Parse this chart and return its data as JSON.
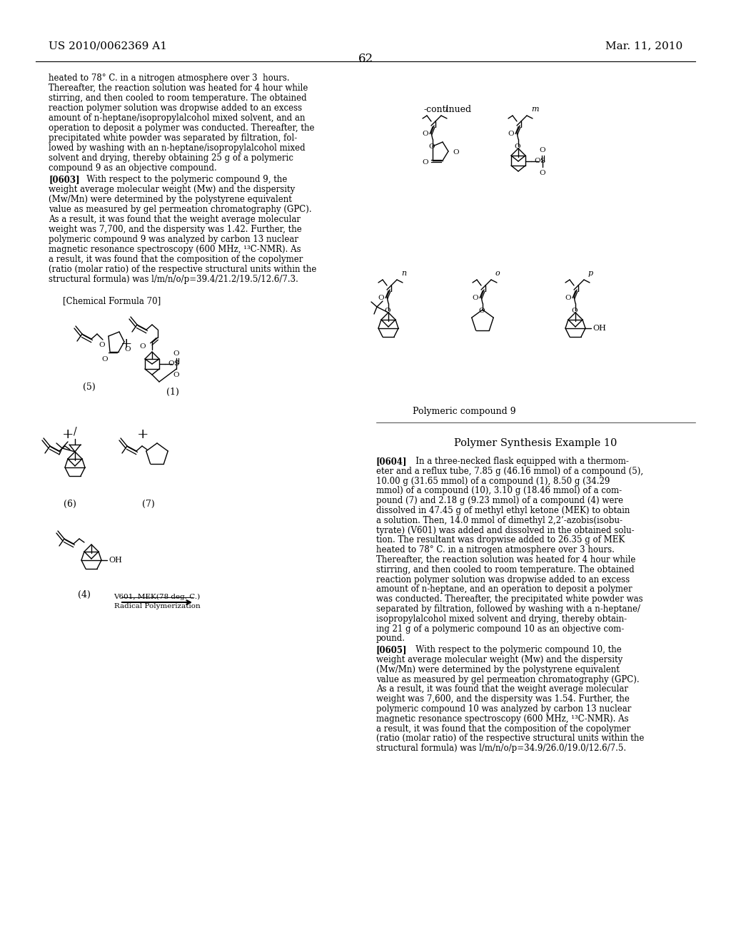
{
  "background_color": "#ffffff",
  "page_number": "62",
  "header_left": "US 2010/0062369 A1",
  "header_right": "Mar. 11, 2010",
  "left_col_lines": [
    "heated to 78° C. in a nitrogen atmosphere over 3  hours.",
    "Thereafter, the reaction solution was heated for 4 hour while",
    "stirring, and then cooled to room temperature. The obtained",
    "reaction polymer solution was dropwise added to an excess",
    "amount of n-heptane/isopropylalcohol mixed solvent, and an",
    "operation to deposit a polymer was conducted. Thereafter, the",
    "precipitated white powder was separated by filtration, fol-",
    "lowed by washing with an n-heptane/isopropylalcohol mixed",
    "solvent and drying, thereby obtaining 25 g of a polymeric",
    "compound 9 as an objective compound."
  ],
  "left_col_para2": [
    "[0603]   With respect to the polymeric compound 9, the",
    "weight average molecular weight (Mw) and the dispersity",
    "(Mw/Mn) were determined by the polystyrene equivalent",
    "value as measured by gel permeation chromatography (GPC).",
    "As a result, it was found that the weight average molecular",
    "weight was 7,700, and the dispersity was 1.42. Further, the",
    "polymeric compound 9 was analyzed by carbon 13 nuclear",
    "magnetic resonance spectroscopy (600 MHz, ¹³C-NMR). As",
    "a result, it was found that the composition of the copolymer",
    "(ratio (molar ratio) of the respective structural units within the",
    "structural formula) was l/m/n/o/p=39.4/21.2/19.5/12.6/7.3."
  ],
  "right_col_para1": [
    "[0604]   In a three-necked flask equipped with a thermom-",
    "eter and a reflux tube, 7.85 g (46.16 mmol) of a compound (5),",
    "10.00 g (31.65 mmol) of a compound (1), 8.50 g (34.29",
    "mmol) of a compound (10), 3.10 g (18.46 mmol) of a com-",
    "pound (7) and 2.18 g (9.23 mmol) of a compound (4) were",
    "dissolved in 47.45 g of methyl ethyl ketone (MEK) to obtain",
    "a solution. Then, 14.0 mmol of dimethyl 2,2’-azobis(isobu-",
    "tyrate) (V601) was added and dissolved in the obtained solu-",
    "tion. The resultant was dropwise added to 26.35 g of MEK",
    "heated to 78° C. in a nitrogen atmosphere over 3 hours.",
    "Thereafter, the reaction solution was heated for 4 hour while",
    "stirring, and then cooled to room temperature. The obtained",
    "reaction polymer solution was dropwise added to an excess",
    "amount of n-heptane, and an operation to deposit a polymer",
    "was conducted. Thereafter, the precipitated white powder was",
    "separated by filtration, followed by washing with a n-heptane/",
    "isopropylalcohol mixed solvent and drying, thereby obtain-",
    "ing 21 g of a polymeric compound 10 as an objective com-",
    "pound."
  ],
  "right_col_para2": [
    "[0605]   With respect to the polymeric compound 10, the",
    "weight average molecular weight (Mw) and the dispersity",
    "(Mw/Mn) were determined by the polystyrene equivalent",
    "value as measured by gel permeation chromatography (GPC).",
    "As a result, it was found that the weight average molecular",
    "weight was 7,600, and the dispersity was 1.54. Further, the",
    "polymeric compound 10 was analyzed by carbon 13 nuclear",
    "magnetic resonance spectroscopy (600 MHz, ¹³C-NMR). As",
    "a result, it was found that the composition of the copolymer",
    "(ratio (molar ratio) of the respective structural units within the",
    "structural formula) was l/m/n/o/p=34.9/26.0/19.0/12.6/7.5."
  ]
}
